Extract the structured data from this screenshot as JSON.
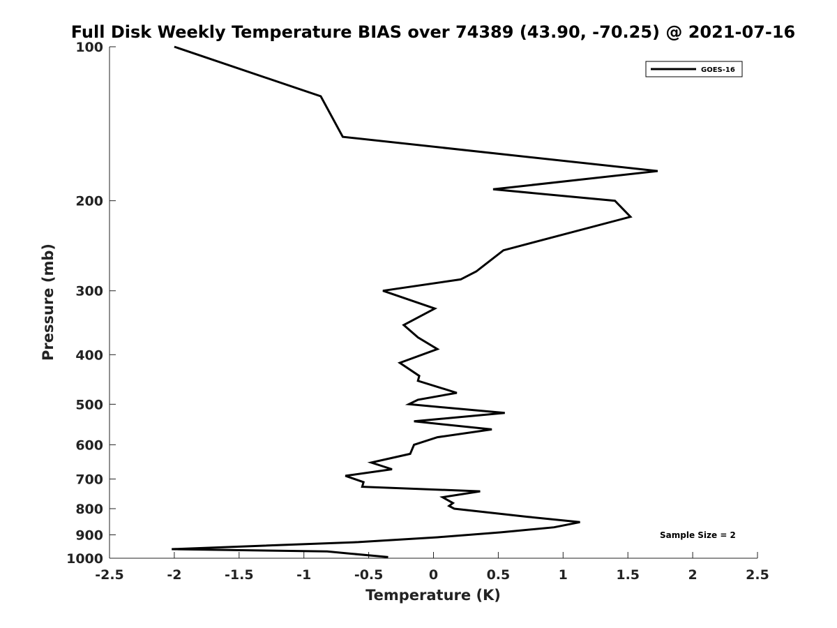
{
  "chart_data": {
    "type": "line",
    "title": "Full Disk Weekly Temperature BIAS over 74389 (43.90, -70.25) @ 2021-07-16",
    "xlabel": "Temperature (K)",
    "ylabel": "Pressure (mb)",
    "xlim": [
      -2.5,
      2.5
    ],
    "ylim": [
      100,
      1000
    ],
    "yscale": "log",
    "yreversed": true,
    "grid": false,
    "x_ticks": [
      -2.5,
      -2,
      -1.5,
      -1,
      -0.5,
      0,
      0.5,
      1,
      1.5,
      2,
      2.5
    ],
    "x_tick_labels": [
      "-2.5",
      "-2",
      "-1.5",
      "-1",
      "-0.5",
      "0",
      "0.5",
      "1",
      "1.5",
      "2",
      "2.5"
    ],
    "y_ticks": [
      100,
      200,
      300,
      400,
      500,
      600,
      700,
      800,
      900,
      1000
    ],
    "y_tick_labels": [
      "100",
      "200",
      "300",
      "400",
      "500",
      "600",
      "700",
      "800",
      "900",
      "1000"
    ],
    "legend_position": "top-right",
    "annotation": "Sample Size = 2",
    "series": [
      {
        "name": "GOES-16",
        "color": "#000000",
        "points": [
          [
            -2.0,
            100
          ],
          [
            -0.87,
            125
          ],
          [
            -0.7,
            150
          ],
          [
            1.73,
            175
          ],
          [
            0.46,
            190
          ],
          [
            1.4,
            200
          ],
          [
            1.52,
            215
          ],
          [
            0.54,
            250
          ],
          [
            0.33,
            275
          ],
          [
            0.21,
            285
          ],
          [
            -0.39,
            300
          ],
          [
            0.01,
            325
          ],
          [
            -0.23,
            350
          ],
          [
            -0.12,
            370
          ],
          [
            0.03,
            390
          ],
          [
            -0.26,
            415
          ],
          [
            -0.11,
            440
          ],
          [
            -0.12,
            450
          ],
          [
            0.18,
            475
          ],
          [
            -0.12,
            490
          ],
          [
            -0.19,
            500
          ],
          [
            0.55,
            520
          ],
          [
            -0.15,
            540
          ],
          [
            0.45,
            560
          ],
          [
            0.03,
            580
          ],
          [
            -0.15,
            600
          ],
          [
            -0.18,
            625
          ],
          [
            -0.48,
            650
          ],
          [
            -0.32,
            670
          ],
          [
            -0.68,
            690
          ],
          [
            -0.54,
            710
          ],
          [
            -0.55,
            725
          ],
          [
            0.36,
            740
          ],
          [
            0.07,
            760
          ],
          [
            0.15,
            780
          ],
          [
            0.12,
            790
          ],
          [
            0.16,
            800
          ],
          [
            0.73,
            830
          ],
          [
            1.13,
            850
          ],
          [
            0.93,
            870
          ],
          [
            0.52,
            890
          ],
          [
            0.03,
            910
          ],
          [
            -0.58,
            930
          ],
          [
            -2.02,
            960
          ],
          [
            -0.82,
            970
          ],
          [
            -0.63,
            980
          ],
          [
            -0.35,
            995
          ]
        ]
      }
    ]
  }
}
